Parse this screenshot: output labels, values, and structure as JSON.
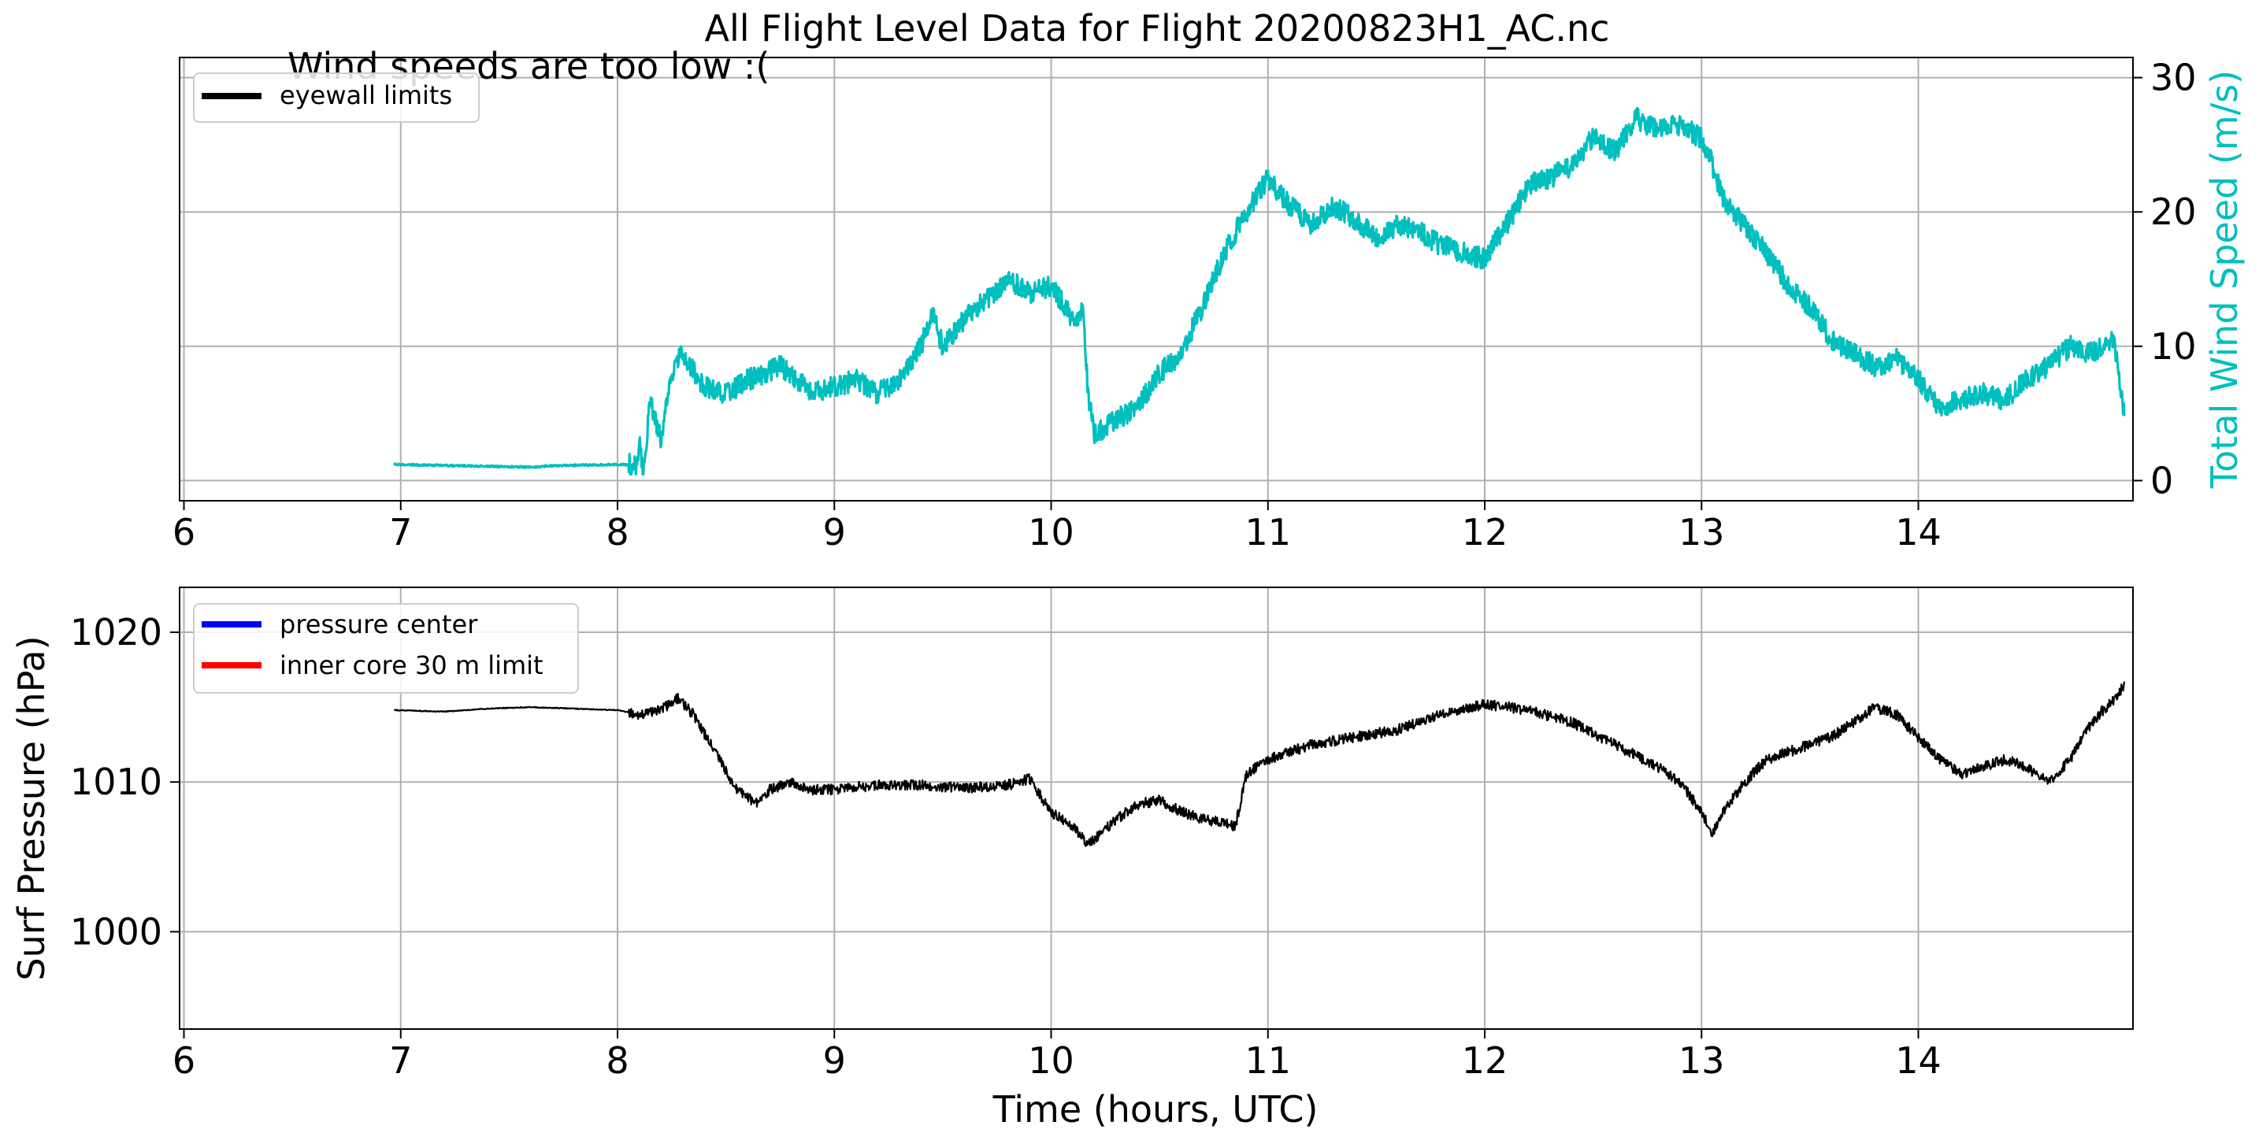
{
  "figure_title": "All Flight Level Data for Flight 20200823H1_AC.nc",
  "annotation": "Wind speeds are too low :(",
  "colors": {
    "wind": "#00bfbf",
    "pressure_line": "#000000",
    "grid": "#b0b0b0",
    "legend_eyewall": "#000000",
    "legend_pressure_center": "#0000ff",
    "legend_inner_core": "#ff0000"
  },
  "chart_data": [
    {
      "type": "line",
      "title": "",
      "xlabel": "",
      "ylabel": "Total Wind Speed (m/s)",
      "y_axis_side": "right",
      "xlim": [
        5.98,
        14.99
      ],
      "ylim": [
        -1.5,
        31.5
      ],
      "x_ticks": [
        6,
        7,
        8,
        9,
        10,
        11,
        12,
        13,
        14
      ],
      "y_ticks": [
        0,
        10,
        20,
        30
      ],
      "grid": true,
      "legend_position": "upper-left",
      "legend": [
        {
          "label": "eyewall limits",
          "color": "#000000"
        }
      ],
      "series": [
        {
          "color": "#00bfbf",
          "noise": 0.8,
          "x": [
            6.97,
            7.3,
            7.6,
            7.7,
            8.0,
            8.09,
            8.1,
            8.12,
            8.15,
            8.2,
            8.25,
            8.3,
            8.4,
            8.5,
            8.6,
            8.75,
            8.9,
            9.0,
            9.1,
            9.2,
            9.3,
            9.4,
            9.45,
            9.5,
            9.6,
            9.7,
            9.8,
            9.9,
            10.0,
            10.1,
            10.15,
            10.17,
            10.2,
            10.25,
            10.4,
            10.5,
            10.6,
            10.7,
            10.8,
            10.9,
            11.0,
            11.1,
            11.2,
            11.3,
            11.4,
            11.5,
            11.6,
            11.7,
            11.8,
            11.9,
            12.0,
            12.05,
            12.1,
            12.2,
            12.3,
            12.4,
            12.5,
            12.6,
            12.7,
            12.8,
            12.9,
            13.0,
            13.05,
            13.1,
            13.2,
            13.3,
            13.4,
            13.5,
            13.6,
            13.7,
            13.8,
            13.9,
            14.0,
            14.1,
            14.2,
            14.3,
            14.4,
            14.5,
            14.6,
            14.7,
            14.8,
            14.9,
            14.95
          ],
          "y": [
            1.2,
            1.1,
            1.0,
            1.1,
            1.2,
            1.2,
            3.0,
            0.5,
            6.0,
            3.0,
            8.0,
            9.5,
            7.0,
            6.5,
            7.5,
            8.5,
            6.5,
            7.0,
            7.5,
            6.5,
            7.5,
            10.0,
            12.5,
            10.0,
            12.0,
            13.5,
            15.0,
            14.0,
            14.5,
            12.0,
            12.5,
            6.5,
            3.5,
            4.0,
            5.5,
            8.0,
            9.5,
            13.0,
            17.0,
            20.0,
            22.5,
            20.5,
            19.0,
            20.5,
            19.5,
            18.0,
            19.0,
            18.5,
            17.5,
            17.0,
            16.5,
            18.0,
            19.0,
            22.0,
            22.5,
            23.5,
            25.5,
            24.5,
            27.0,
            26.0,
            26.5,
            25.5,
            23.5,
            21.0,
            19.0,
            17.0,
            14.5,
            13.0,
            10.5,
            9.5,
            8.5,
            9.0,
            7.5,
            5.5,
            6.0,
            6.5,
            6.0,
            7.5,
            8.5,
            10.0,
            9.5,
            10.5,
            5.0
          ]
        }
      ]
    },
    {
      "type": "line",
      "title": "",
      "xlabel": "Time (hours, UTC)",
      "ylabel": "Surf Pressure (hPa)",
      "y_axis_side": "left",
      "xlim": [
        5.98,
        14.99
      ],
      "ylim": [
        993.5,
        1023
      ],
      "x_ticks": [
        6,
        7,
        8,
        9,
        10,
        11,
        12,
        13,
        14
      ],
      "y_ticks": [
        1000,
        1010,
        1020
      ],
      "grid": true,
      "legend_position": "upper-left",
      "legend": [
        {
          "label": "pressure center",
          "color": "#0000ff"
        },
        {
          "label": "inner core 30 m limit",
          "color": "#ff0000"
        }
      ],
      "series": [
        {
          "color": "#000000",
          "noise": 0.35,
          "x": [
            6.97,
            7.2,
            7.4,
            7.6,
            7.8,
            8.0,
            8.1,
            8.2,
            8.28,
            8.35,
            8.45,
            8.55,
            8.65,
            8.7,
            8.8,
            8.9,
            9.0,
            9.2,
            9.4,
            9.6,
            9.8,
            9.9,
            10.0,
            10.1,
            10.17,
            10.3,
            10.4,
            10.5,
            10.6,
            10.7,
            10.8,
            10.85,
            10.9,
            11.0,
            11.2,
            11.4,
            11.6,
            11.8,
            12.0,
            12.2,
            12.4,
            12.6,
            12.8,
            12.9,
            13.0,
            13.05,
            13.1,
            13.2,
            13.3,
            13.4,
            13.5,
            13.6,
            13.7,
            13.8,
            13.9,
            14.0,
            14.1,
            14.2,
            14.3,
            14.4,
            14.5,
            14.6,
            14.7,
            14.8,
            14.9,
            14.95
          ],
          "y": [
            1014.8,
            1014.7,
            1014.9,
            1015.0,
            1014.9,
            1014.8,
            1014.5,
            1014.8,
            1015.6,
            1014.5,
            1012.0,
            1009.5,
            1008.5,
            1009.5,
            1010.0,
            1009.5,
            1009.5,
            1009.8,
            1009.8,
            1009.6,
            1009.8,
            1010.2,
            1008.0,
            1007.0,
            1005.8,
            1007.5,
            1008.5,
            1008.8,
            1008.0,
            1007.5,
            1007.3,
            1007.0,
            1010.5,
            1011.5,
            1012.5,
            1013.0,
            1013.5,
            1014.5,
            1015.2,
            1014.8,
            1014.0,
            1012.5,
            1011.0,
            1010.0,
            1008.0,
            1006.5,
            1008.0,
            1010.0,
            1011.5,
            1012.0,
            1012.5,
            1013.0,
            1014.0,
            1015.0,
            1014.5,
            1013.0,
            1011.5,
            1010.5,
            1011.0,
            1011.5,
            1011.0,
            1010.0,
            1011.5,
            1014.0,
            1015.5,
            1016.5
          ]
        }
      ]
    }
  ]
}
